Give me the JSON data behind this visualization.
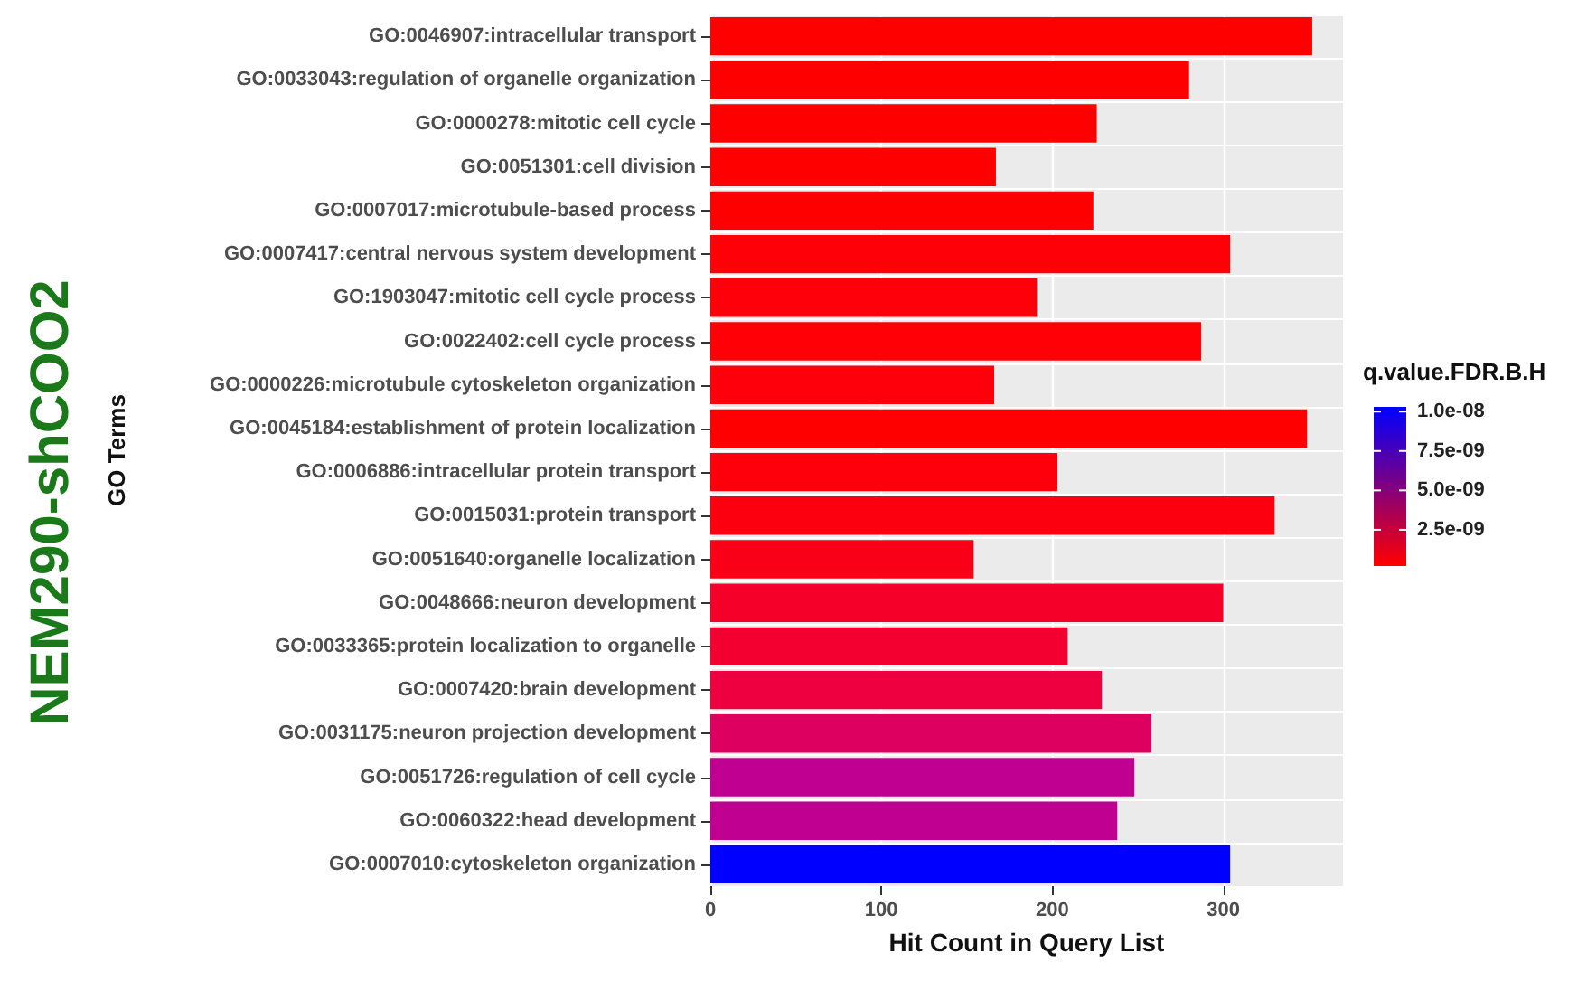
{
  "chart_data": {
    "type": "bar",
    "orientation": "horizontal",
    "categories": [
      "GO:0046907:intracellular transport",
      "GO:0033043:regulation of organelle organization",
      "GO:0000278:mitotic cell cycle",
      "GO:0051301:cell division",
      "GO:0007017:microtubule-based process",
      "GO:0007417:central nervous system development",
      "GO:1903047:mitotic cell cycle process",
      "GO:0022402:cell cycle process",
      "GO:0000226:microtubule cytoskeleton organization",
      "GO:0045184:establishment of protein localization",
      "GO:0006886:intracellular protein transport",
      "GO:0015031:protein transport",
      "GO:0051640:organelle localization",
      "GO:0048666:neuron development",
      "GO:0033365:protein localization to organelle",
      "GO:0007420:brain development",
      "GO:0031175:neuron projection development",
      "GO:0051726:regulation of cell cycle",
      "GO:0060322:head development",
      "GO:0007010:cytoskeleton organization"
    ],
    "values": [
      352,
      280,
      226,
      167,
      224,
      304,
      191,
      287,
      166,
      349,
      203,
      330,
      154,
      300,
      209,
      229,
      258,
      248,
      238,
      304
    ],
    "colors": [
      "#ff0000",
      "#ff0000",
      "#ff0000",
      "#ff0000",
      "#ff0000",
      "#fe0008",
      "#fd000a",
      "#fe0006",
      "#fd000c",
      "#ff0000",
      "#fd000c",
      "#fc0010",
      "#fa0018",
      "#f50028",
      "#f30030",
      "#ee0040",
      "#dd0060",
      "#c00090",
      "#bf0090",
      "#0000ff"
    ],
    "xlabel": "Hit Count in Query List",
    "ylabel": "GO Terms",
    "clabel": "q.value.FDR.B.H",
    "xlim": [
      0,
      370
    ],
    "xticks": [
      0,
      100,
      200,
      300
    ],
    "clim": [
      2e-10,
      1.03e-08
    ],
    "cticks": [
      {
        "value": 1e-08,
        "label": "1.0e-08"
      },
      {
        "value": 7.5e-09,
        "label": "7.5e-09"
      },
      {
        "value": 5e-09,
        "label": "5.0e-09"
      },
      {
        "value": 2.5e-09,
        "label": "2.5e-09"
      }
    ],
    "grid": true,
    "annotations": [
      "NEM290-shCOO2"
    ]
  }
}
